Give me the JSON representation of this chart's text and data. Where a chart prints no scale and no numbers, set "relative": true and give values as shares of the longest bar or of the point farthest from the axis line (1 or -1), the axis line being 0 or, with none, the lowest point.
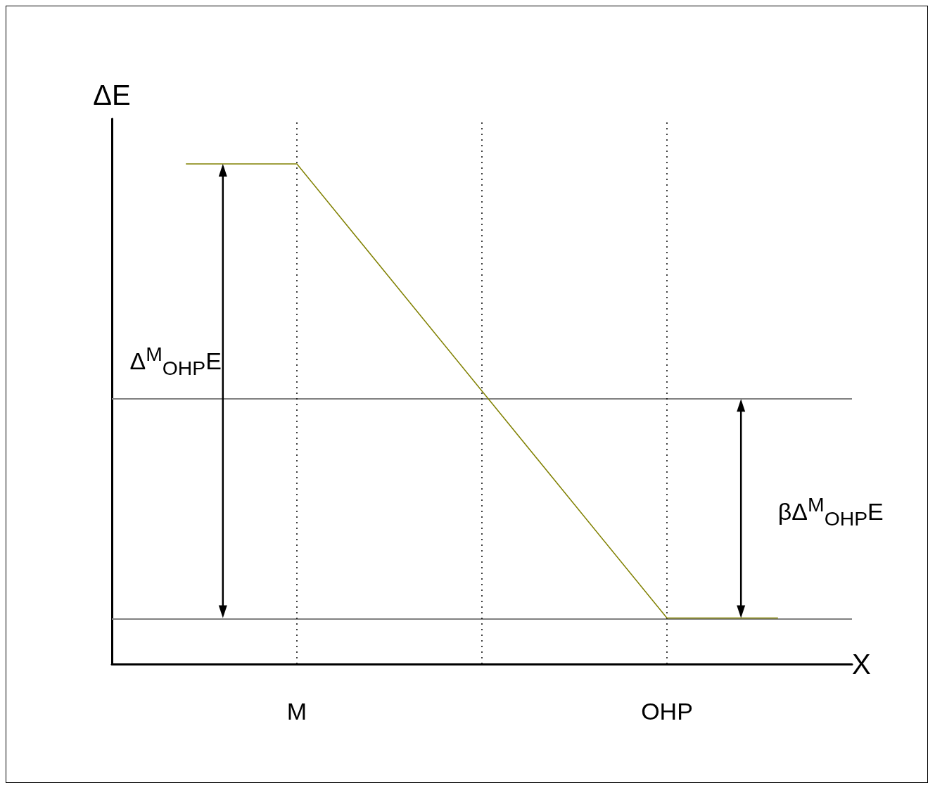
{
  "chart_data": {
    "type": "line",
    "relative": true,
    "xlabel": "X",
    "ylabel": "ΔE",
    "categories": [
      null,
      null,
      null,
      null,
      null,
      "M",
      null,
      null,
      null,
      null,
      null,
      null,
      null,
      null,
      null,
      "OHP",
      null,
      null,
      null,
      null,
      null
    ],
    "series": [
      {
        "color": "#808000",
        "values": [
          null,
          null,
          1,
          null,
          null,
          1,
          null,
          null,
          null,
          null,
          null,
          null,
          null,
          null,
          null,
          0.092,
          null,
          null,
          0.092,
          null,
          null
        ]
      }
    ],
    "ref_lines": [
      {
        "axis": "y",
        "value": 0.53,
        "color": "#808080",
        "line_style": "solid"
      },
      {
        "axis": "y",
        "value": 0.092,
        "color": "#808080",
        "line_style": "solid"
      }
    ],
    "annotations": [
      "Δ$^{M}$$_{OHP}$E",
      "βΔ$^{M}$$_{OHP}$E"
    ],
    "grid": "x",
    "marker": "none",
    "line_style": "solid"
  }
}
